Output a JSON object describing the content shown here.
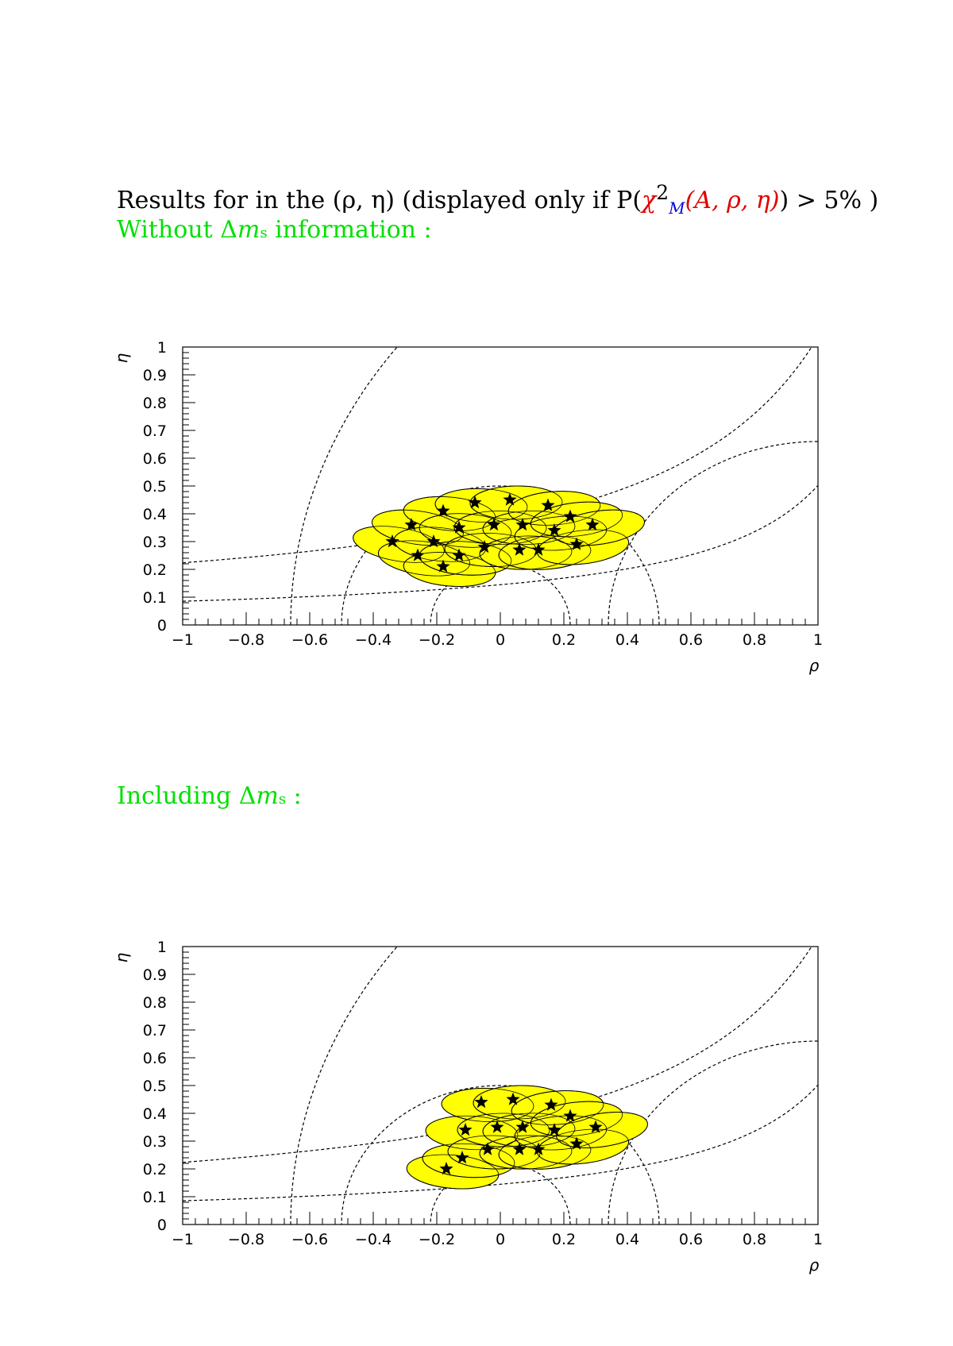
{
  "header": {
    "title_prefix": "Results for in the (ρ, η) (displayed only if P(",
    "title_chi": "χ",
    "title_sq": "2",
    "title_m": "M",
    "title_args": "(A, ρ, η)",
    "title_suffix": ") > 5% )"
  },
  "sections": [
    {
      "label_pre": "Without Δ",
      "label_m": "m",
      "label_sub": "s",
      "label_post": " information :"
    },
    {
      "label_pre": "Including Δ",
      "label_m": "m",
      "label_sub": "s",
      "label_post": " :"
    }
  ],
  "colors": {
    "fill": "#ffff00",
    "stroke": "#000000",
    "green": "#00e000",
    "red": "#e00000",
    "blue": "#0000e0"
  },
  "chart_data": [
    {
      "type": "scatter",
      "xlabel": "ρ",
      "ylabel": "η",
      "xlim": [
        -1,
        1
      ],
      "ylim": [
        0,
        1
      ],
      "xticks": [
        "−1",
        "−0.8",
        "−0.6",
        "−0.4",
        "−0.2",
        "0",
        "0.2",
        "0.4",
        "0.6",
        "0.8",
        "1"
      ],
      "yticks": [
        "0",
        "0.1",
        "0.2",
        "0.3",
        "0.4",
        "0.5",
        "0.6",
        "0.7",
        "0.8",
        "0.9",
        "1"
      ],
      "marker": "star",
      "points": [
        {
          "x": -0.34,
          "y": 0.3
        },
        {
          "x": -0.28,
          "y": 0.36
        },
        {
          "x": -0.26,
          "y": 0.25
        },
        {
          "x": -0.21,
          "y": 0.3
        },
        {
          "x": -0.18,
          "y": 0.21
        },
        {
          "x": -0.18,
          "y": 0.41
        },
        {
          "x": -0.13,
          "y": 0.35
        },
        {
          "x": -0.13,
          "y": 0.25
        },
        {
          "x": -0.08,
          "y": 0.44
        },
        {
          "x": -0.05,
          "y": 0.28
        },
        {
          "x": -0.02,
          "y": 0.36
        },
        {
          "x": 0.03,
          "y": 0.45
        },
        {
          "x": 0.06,
          "y": 0.27
        },
        {
          "x": 0.07,
          "y": 0.36
        },
        {
          "x": 0.12,
          "y": 0.27
        },
        {
          "x": 0.15,
          "y": 0.43
        },
        {
          "x": 0.17,
          "y": 0.34
        },
        {
          "x": 0.22,
          "y": 0.39
        },
        {
          "x": 0.24,
          "y": 0.29
        },
        {
          "x": 0.29,
          "y": 0.36
        }
      ]
    },
    {
      "type": "scatter",
      "xlabel": "ρ",
      "ylabel": "η",
      "xlim": [
        -1,
        1
      ],
      "ylim": [
        0,
        1
      ],
      "xticks": [
        "−1",
        "−0.8",
        "−0.6",
        "−0.4",
        "−0.2",
        "0",
        "0.2",
        "0.4",
        "0.6",
        "0.8",
        "1"
      ],
      "yticks": [
        "0",
        "0.1",
        "0.2",
        "0.3",
        "0.4",
        "0.5",
        "0.6",
        "0.7",
        "0.8",
        "0.9",
        "1"
      ],
      "marker": "star",
      "points": [
        {
          "x": -0.17,
          "y": 0.2
        },
        {
          "x": -0.12,
          "y": 0.24
        },
        {
          "x": -0.11,
          "y": 0.34
        },
        {
          "x": -0.06,
          "y": 0.44
        },
        {
          "x": -0.04,
          "y": 0.27
        },
        {
          "x": -0.01,
          "y": 0.35
        },
        {
          "x": 0.04,
          "y": 0.45
        },
        {
          "x": 0.06,
          "y": 0.27
        },
        {
          "x": 0.07,
          "y": 0.35
        },
        {
          "x": 0.12,
          "y": 0.27
        },
        {
          "x": 0.16,
          "y": 0.43
        },
        {
          "x": 0.17,
          "y": 0.34
        },
        {
          "x": 0.22,
          "y": 0.39
        },
        {
          "x": 0.24,
          "y": 0.29
        },
        {
          "x": 0.3,
          "y": 0.35
        }
      ]
    }
  ]
}
